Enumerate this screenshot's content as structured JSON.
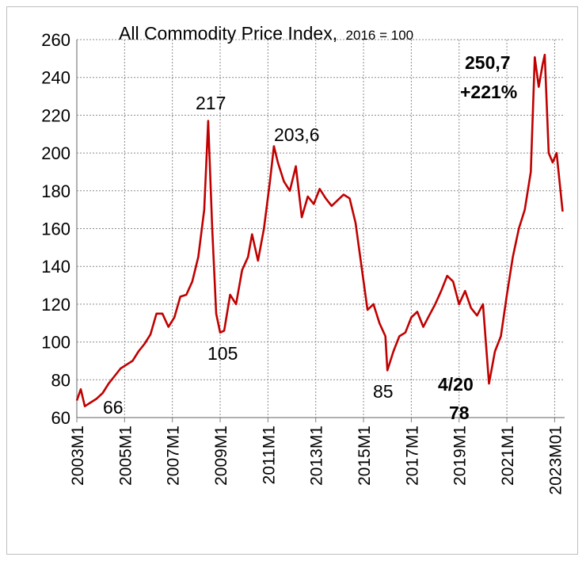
{
  "chart_data": {
    "type": "line",
    "title": "All Commodity Price Index,",
    "subtitle": "2016 = 100",
    "ylim": [
      60,
      260
    ],
    "yticks": [
      60,
      80,
      100,
      120,
      140,
      160,
      180,
      200,
      220,
      240,
      260
    ],
    "x_tick_labels": [
      "2003M1",
      "2005M1",
      "2007M1",
      "2009M1",
      "2011M1",
      "2013M1",
      "2015M1",
      "2017M1",
      "2019M1",
      "2021M1",
      "2023M01"
    ],
    "grid": true,
    "line_color": "#c00000",
    "series": [
      {
        "points": [
          [
            "2003M1",
            69
          ],
          [
            "2003M3",
            75
          ],
          [
            "2003M5",
            66
          ],
          [
            "2003M8",
            68
          ],
          [
            "2003M11",
            70
          ],
          [
            "2004M2",
            73
          ],
          [
            "2004M5",
            78
          ],
          [
            "2004M8",
            82
          ],
          [
            "2004M11",
            86
          ],
          [
            "2005M2",
            88
          ],
          [
            "2005M5",
            90
          ],
          [
            "2005M8",
            95
          ],
          [
            "2005M11",
            99
          ],
          [
            "2006M2",
            104
          ],
          [
            "2006M5",
            115
          ],
          [
            "2006M8",
            115
          ],
          [
            "2006M11",
            108
          ],
          [
            "2007M2",
            113
          ],
          [
            "2007M5",
            124
          ],
          [
            "2007M8",
            125
          ],
          [
            "2007M11",
            132
          ],
          [
            "2008M2",
            145
          ],
          [
            "2008M5",
            170
          ],
          [
            "2008M7",
            217
          ],
          [
            "2008M9",
            160
          ],
          [
            "2008M11",
            115
          ],
          [
            "2009M1",
            105
          ],
          [
            "2009M3",
            106
          ],
          [
            "2009M6",
            125
          ],
          [
            "2009M9",
            120
          ],
          [
            "2009M12",
            138
          ],
          [
            "2010M3",
            145
          ],
          [
            "2010M5",
            157
          ],
          [
            "2010M8",
            143
          ],
          [
            "2010M11",
            160
          ],
          [
            "2011M2",
            185
          ],
          [
            "2011M4",
            203.6
          ],
          [
            "2011M6",
            195
          ],
          [
            "2011M9",
            185
          ],
          [
            "2011M12",
            180
          ],
          [
            "2012M3",
            193
          ],
          [
            "2012M6",
            166
          ],
          [
            "2012M9",
            177
          ],
          [
            "2012M12",
            173
          ],
          [
            "2013M3",
            181
          ],
          [
            "2013M6",
            176
          ],
          [
            "2013M9",
            172
          ],
          [
            "2013M12",
            175
          ],
          [
            "2014M3",
            178
          ],
          [
            "2014M6",
            176
          ],
          [
            "2014M9",
            163
          ],
          [
            "2014M12",
            140
          ],
          [
            "2015M3",
            117
          ],
          [
            "2015M6",
            120
          ],
          [
            "2015M9",
            110
          ],
          [
            "2015M12",
            103
          ],
          [
            "2016M1",
            85
          ],
          [
            "2016M4",
            95
          ],
          [
            "2016M7",
            103
          ],
          [
            "2016M10",
            105
          ],
          [
            "2017M1",
            113
          ],
          [
            "2017M4",
            116
          ],
          [
            "2017M7",
            108
          ],
          [
            "2017M10",
            114
          ],
          [
            "2018M1",
            120
          ],
          [
            "2018M4",
            127
          ],
          [
            "2018M7",
            135
          ],
          [
            "2018M10",
            132
          ],
          [
            "2019M1",
            120
          ],
          [
            "2019M4",
            127
          ],
          [
            "2019M7",
            118
          ],
          [
            "2019M10",
            114
          ],
          [
            "2020M1",
            120
          ],
          [
            "2020M4",
            78
          ],
          [
            "2020M7",
            95
          ],
          [
            "2020M10",
            103
          ],
          [
            "2021M1",
            125
          ],
          [
            "2021M4",
            145
          ],
          [
            "2021M7",
            160
          ],
          [
            "2021M10",
            170
          ],
          [
            "2022M1",
            190
          ],
          [
            "2022M3",
            250.7
          ],
          [
            "2022M5",
            235
          ],
          [
            "2022M7",
            247
          ],
          [
            "2022M8",
            252
          ],
          [
            "2022M10",
            200
          ],
          [
            "2022M12",
            195
          ],
          [
            "2023M2",
            200
          ],
          [
            "2023M5",
            169
          ]
        ]
      }
    ],
    "annotations": [
      {
        "text": "66",
        "x": "2005M1",
        "y": 66,
        "bold": false
      },
      {
        "text": "217",
        "x": "2008M7",
        "y": 217,
        "bold": false
      },
      {
        "text": "105",
        "x": "2009M1",
        "y": 105,
        "bold": false
      },
      {
        "text": "203,6",
        "x": "2011M4",
        "y": 203.6,
        "bold": false
      },
      {
        "text": "85",
        "x": "2016M1",
        "y": 85,
        "bold": false
      },
      {
        "text": "4/20",
        "x": "2020M4",
        "y": 78,
        "bold": true
      },
      {
        "text": "78",
        "x": "2020M4",
        "y": 78,
        "bold": true
      },
      {
        "text": "250,7",
        "x": "2022M3",
        "y": 250.7,
        "bold": true
      },
      {
        "text": "+221%",
        "x": "2022M3",
        "y": 250.7,
        "bold": true
      }
    ]
  }
}
